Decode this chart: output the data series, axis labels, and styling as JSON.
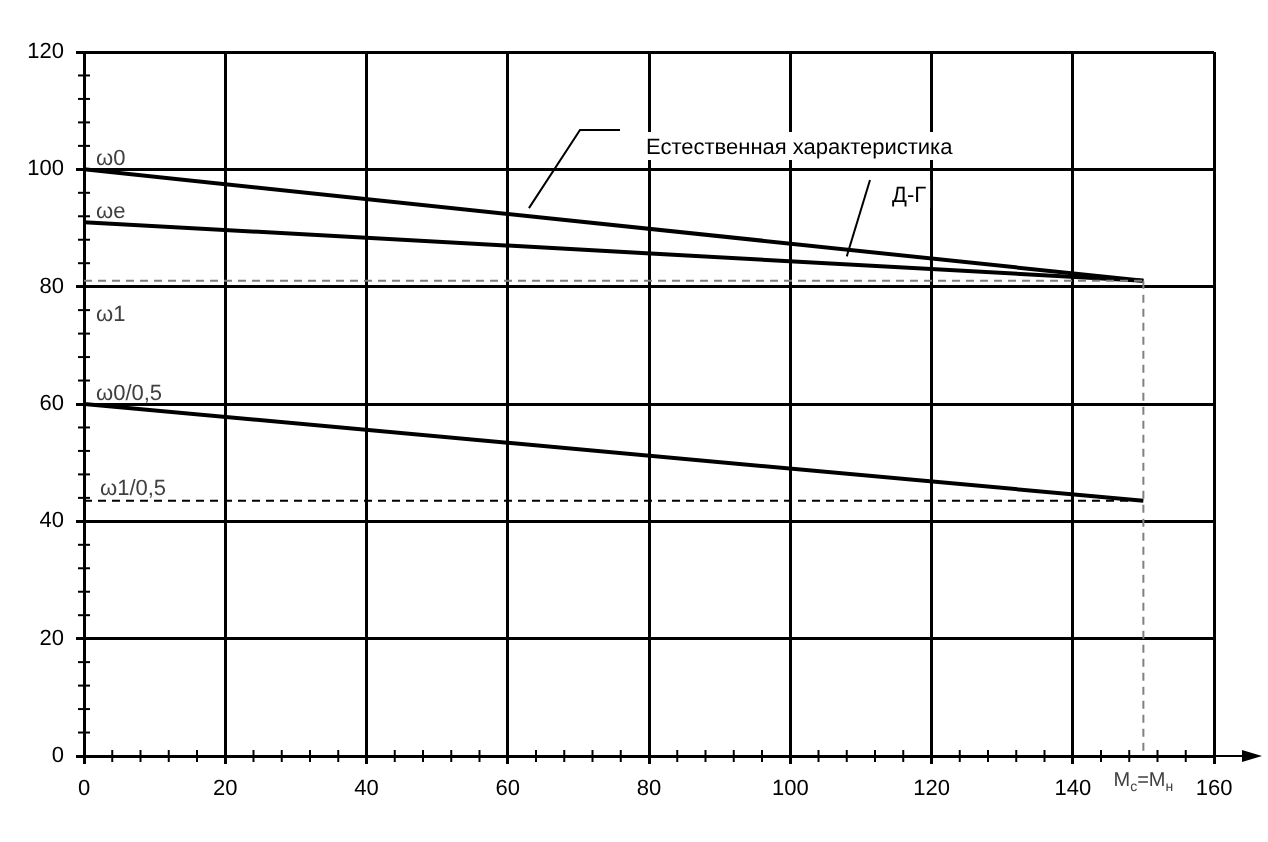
{
  "chart_data": {
    "type": "line",
    "x": [
      0,
      150
    ],
    "series": [
      {
        "name": "Естественная характеристика",
        "color": "#000000",
        "values": [
          100,
          81
        ]
      },
      {
        "name": "Д-Г",
        "color": "#000000",
        "values": [
          91,
          81
        ]
      },
      {
        "color": "#000000",
        "values": [
          60,
          43.5
        ]
      }
    ],
    "xlim": [
      0,
      160
    ],
    "xticks": [
      0,
      20,
      40,
      60,
      80,
      100,
      120,
      140,
      160
    ],
    "ylim": [
      0,
      120
    ],
    "yticks": [
      0,
      20,
      40,
      60,
      80,
      100,
      120
    ],
    "grid": true,
    "legend": false,
    "marker": "none",
    "line_style": "solid",
    "ref_lines": [
      {
        "axis": "y",
        "value": 81,
        "label": "ω1",
        "color": "#808080",
        "line_style": "dashed"
      },
      {
        "axis": "y",
        "value": 43.5,
        "label": "ω1/0,5",
        "color": "#000000",
        "line_style": "dashed"
      },
      {
        "axis": "x",
        "value": 150,
        "label": "M$_{c}$=M$_{н}$",
        "color": "#808080",
        "line_style": "dashed"
      }
    ],
    "annotations": [
      "ω0",
      "ωe",
      "ω0/0,5"
    ]
  }
}
